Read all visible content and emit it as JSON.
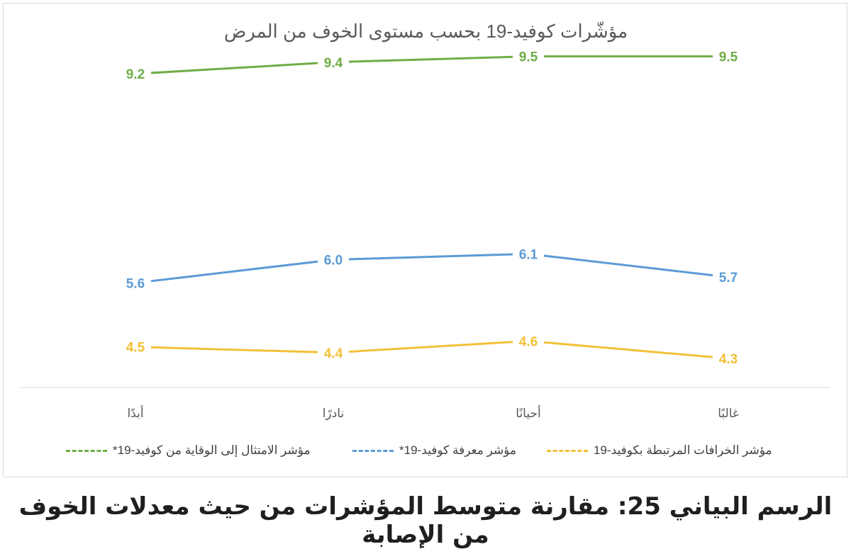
{
  "chart_data": {
    "type": "line",
    "title": "مؤشّرات كوفيد-19 بحسب مستوى الخوف من المرض",
    "categories": [
      "أبدًا",
      "نادرًا",
      "أحيانًا",
      "غالبًا"
    ],
    "series": [
      {
        "name": "مؤشر الامتثال إلى الوقاية من كوفيد-19*",
        "values": [
          9.2,
          9.4,
          9.5,
          9.5
        ],
        "color": "#70ad47",
        "label_labels": [
          "9.2",
          "9.4",
          "9.5",
          "9.5"
        ]
      },
      {
        "name": "مؤشر معرفة كوفيد-19*",
        "values": [
          5.6,
          6.0,
          6.1,
          5.7
        ],
        "color": "#5b9bd5",
        "label_labels": [
          "5.6",
          "6.0",
          "6.1",
          "5.7"
        ]
      },
      {
        "name": "مؤشر الخرافات المرتبطة بكوفيد-19",
        "values": [
          4.5,
          4.4,
          4.6,
          4.3
        ],
        "color": "#f2c037",
        "label_labels": [
          "4.5",
          "4.4",
          "4.6",
          "4.3"
        ]
      }
    ],
    "ylim": [
      3.8,
      9.8
    ],
    "grid": false,
    "legend_position": "bottom"
  },
  "caption": "الرسم البياني 25: مقارنة متوسط المؤشرات من حيث معدلات الخوف من الإصابة"
}
